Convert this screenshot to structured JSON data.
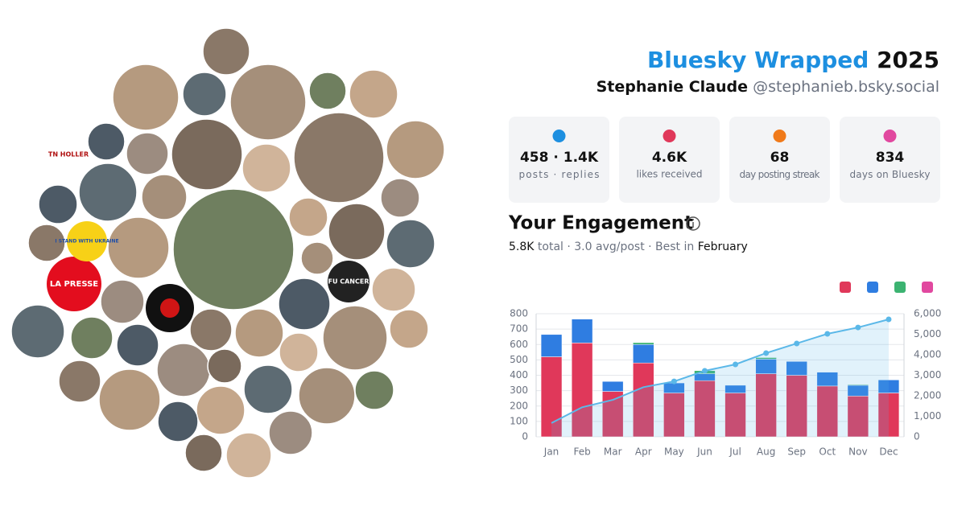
{
  "header": {
    "title": "Bluesky Wrapped",
    "year": "2025",
    "name": "Stephanie Claude",
    "handle": "@stephanieb.bsky.social"
  },
  "avatar_labels": [
    "TN HOLLER",
    "I STAND WITH UKRAINE",
    "LA PRESSE",
    "FU CANCER"
  ],
  "stats": [
    {
      "value": "458 · 1.4K",
      "label": "posts · replies"
    },
    {
      "value": "4.6K",
      "label": "likes received"
    },
    {
      "value": "68",
      "label": "day posting streak"
    },
    {
      "value": "834",
      "label": "days on Bluesky"
    }
  ],
  "engagement": {
    "title": "Your Engagement",
    "total": "5.8K",
    "summary": "total · 3.0 avg/post · Best in",
    "best": "February"
  },
  "chart_data": {
    "type": "bar",
    "stacked": true,
    "categories": [
      "Jan",
      "Feb",
      "Mar",
      "Apr",
      "May",
      "Jun",
      "Jul",
      "Aug",
      "Sep",
      "Oct",
      "Nov",
      "Dec"
    ],
    "series": [
      {
        "color": "#e0385a",
        "values": [
          520,
          610,
          295,
          480,
          285,
          365,
          285,
          410,
          400,
          330,
          265,
          285
        ]
      },
      {
        "color": "#2f7de1",
        "values": [
          145,
          155,
          65,
          120,
          65,
          45,
          50,
          95,
          90,
          90,
          70,
          85
        ]
      },
      {
        "color": "#3cb371",
        "values": [
          0,
          0,
          0,
          12,
          0,
          20,
          0,
          10,
          0,
          0,
          5,
          0
        ]
      },
      {
        "color": "#e1489f",
        "values": [
          0,
          0,
          0,
          0,
          0,
          0,
          0,
          0,
          0,
          0,
          0,
          0
        ]
      },
      {
        "type": "line",
        "axis": "y2",
        "color": "#5bb8e8",
        "values": [
          670,
          1440,
          1800,
          2420,
          2700,
          3215,
          3530,
          4080,
          4550,
          5020,
          5330,
          5725
        ]
      }
    ],
    "ylim": [
      0,
      800
    ],
    "yticks": [
      0,
      100,
      200,
      300,
      400,
      500,
      600,
      700,
      800
    ],
    "y2lim": [
      0,
      6000
    ],
    "y2ticks": [
      0,
      {
        "value": 1000,
        "label": "1,000"
      },
      {
        "value": 2000,
        "label": "2,000"
      },
      {
        "value": 3000,
        "label": "3,000"
      },
      {
        "value": 4000,
        "label": "4,000"
      },
      {
        "value": 5000,
        "label": "5,000"
      },
      {
        "value": 6000,
        "label": "6,000"
      }
    ],
    "grid": true
  }
}
